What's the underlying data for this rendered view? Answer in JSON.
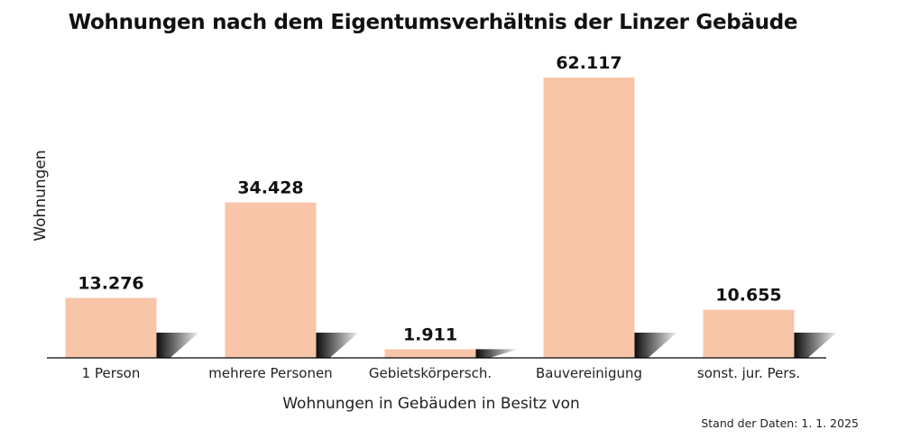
{
  "chart_data": {
    "type": "bar",
    "title": "Wohnungen nach dem Eigentumsverhältnis der Linzer Gebäude",
    "xlabel": "Wohnungen in Gebäuden in Besitz von",
    "ylabel": "Wohnungen",
    "categories": [
      "1 Person",
      "mehrere Personen",
      "Gebietskörpersch.",
      "Bauvereinigung",
      "sonst. jur. Pers."
    ],
    "values": [
      13276,
      34428,
      1911,
      62117,
      10655
    ],
    "value_labels": [
      "13.276",
      "34.428",
      "1.911",
      "62.117",
      "10.655"
    ],
    "ylim": [
      0,
      62117
    ],
    "grid": false,
    "legend": "none",
    "colors": {
      "bar": "#f8c5a8",
      "shadow": "#000000",
      "axis": "#000000"
    }
  },
  "footer": {
    "note": "Stand der Daten: 1. 1. 2025"
  }
}
